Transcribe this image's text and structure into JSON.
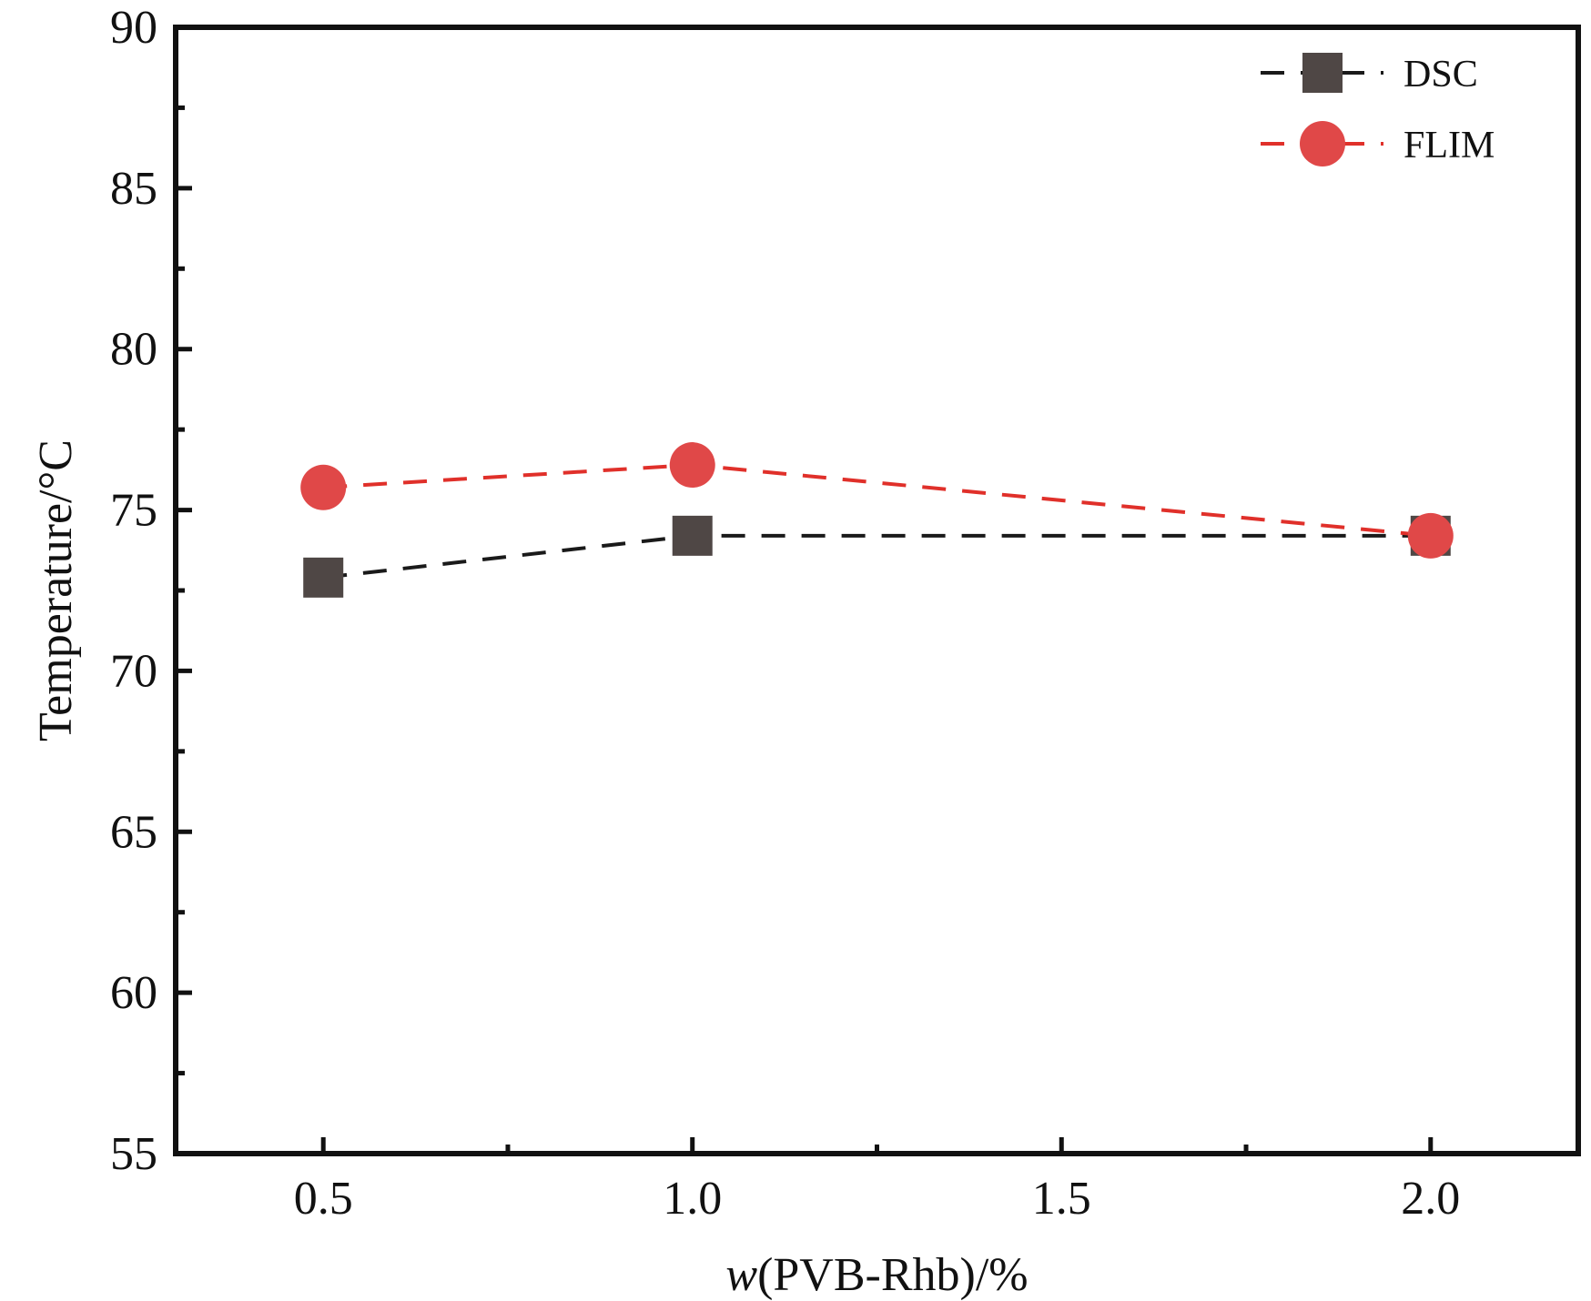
{
  "chart_data": {
    "type": "line",
    "title": "",
    "xlabel": "w(PVB-Rhb)/%",
    "xlabel_italic_part": "w",
    "xlabel_rest": "(PVB-Rhb)/%",
    "ylabel": "Temperature/°C",
    "xlim": [
      0.3,
      2.2
    ],
    "ylim": [
      55,
      90
    ],
    "x_ticks": [
      0.5,
      1.0,
      1.5,
      2.0
    ],
    "x_tick_labels": [
      "0.5",
      "1.0",
      "1.5",
      "2.0"
    ],
    "x_minor_ticks": [
      0.75,
      1.25,
      1.75
    ],
    "y_ticks": [
      55,
      60,
      65,
      70,
      75,
      80,
      85,
      90
    ],
    "y_tick_labels": [
      "55",
      "60",
      "65",
      "70",
      "75",
      "80",
      "85",
      "90"
    ],
    "y_minor_ticks": [
      57.5,
      62.5,
      67.5,
      72.5,
      77.5,
      82.5,
      87.5
    ],
    "grid": false,
    "legend_position": "top-right",
    "series": [
      {
        "name": "DSC",
        "x": [
          0.5,
          1.0,
          2.0
        ],
        "values": [
          72.9,
          74.2,
          74.2
        ],
        "marker": "square",
        "line_style": "dashed",
        "color": "#4f4745",
        "line_color": "#1a1a1a"
      },
      {
        "name": "FLIM",
        "x": [
          0.5,
          1.0,
          2.0
        ],
        "values": [
          75.7,
          76.4,
          74.2
        ],
        "marker": "circle",
        "line_style": "dashed",
        "color": "#e04848",
        "line_color": "#e0302a"
      }
    ]
  }
}
